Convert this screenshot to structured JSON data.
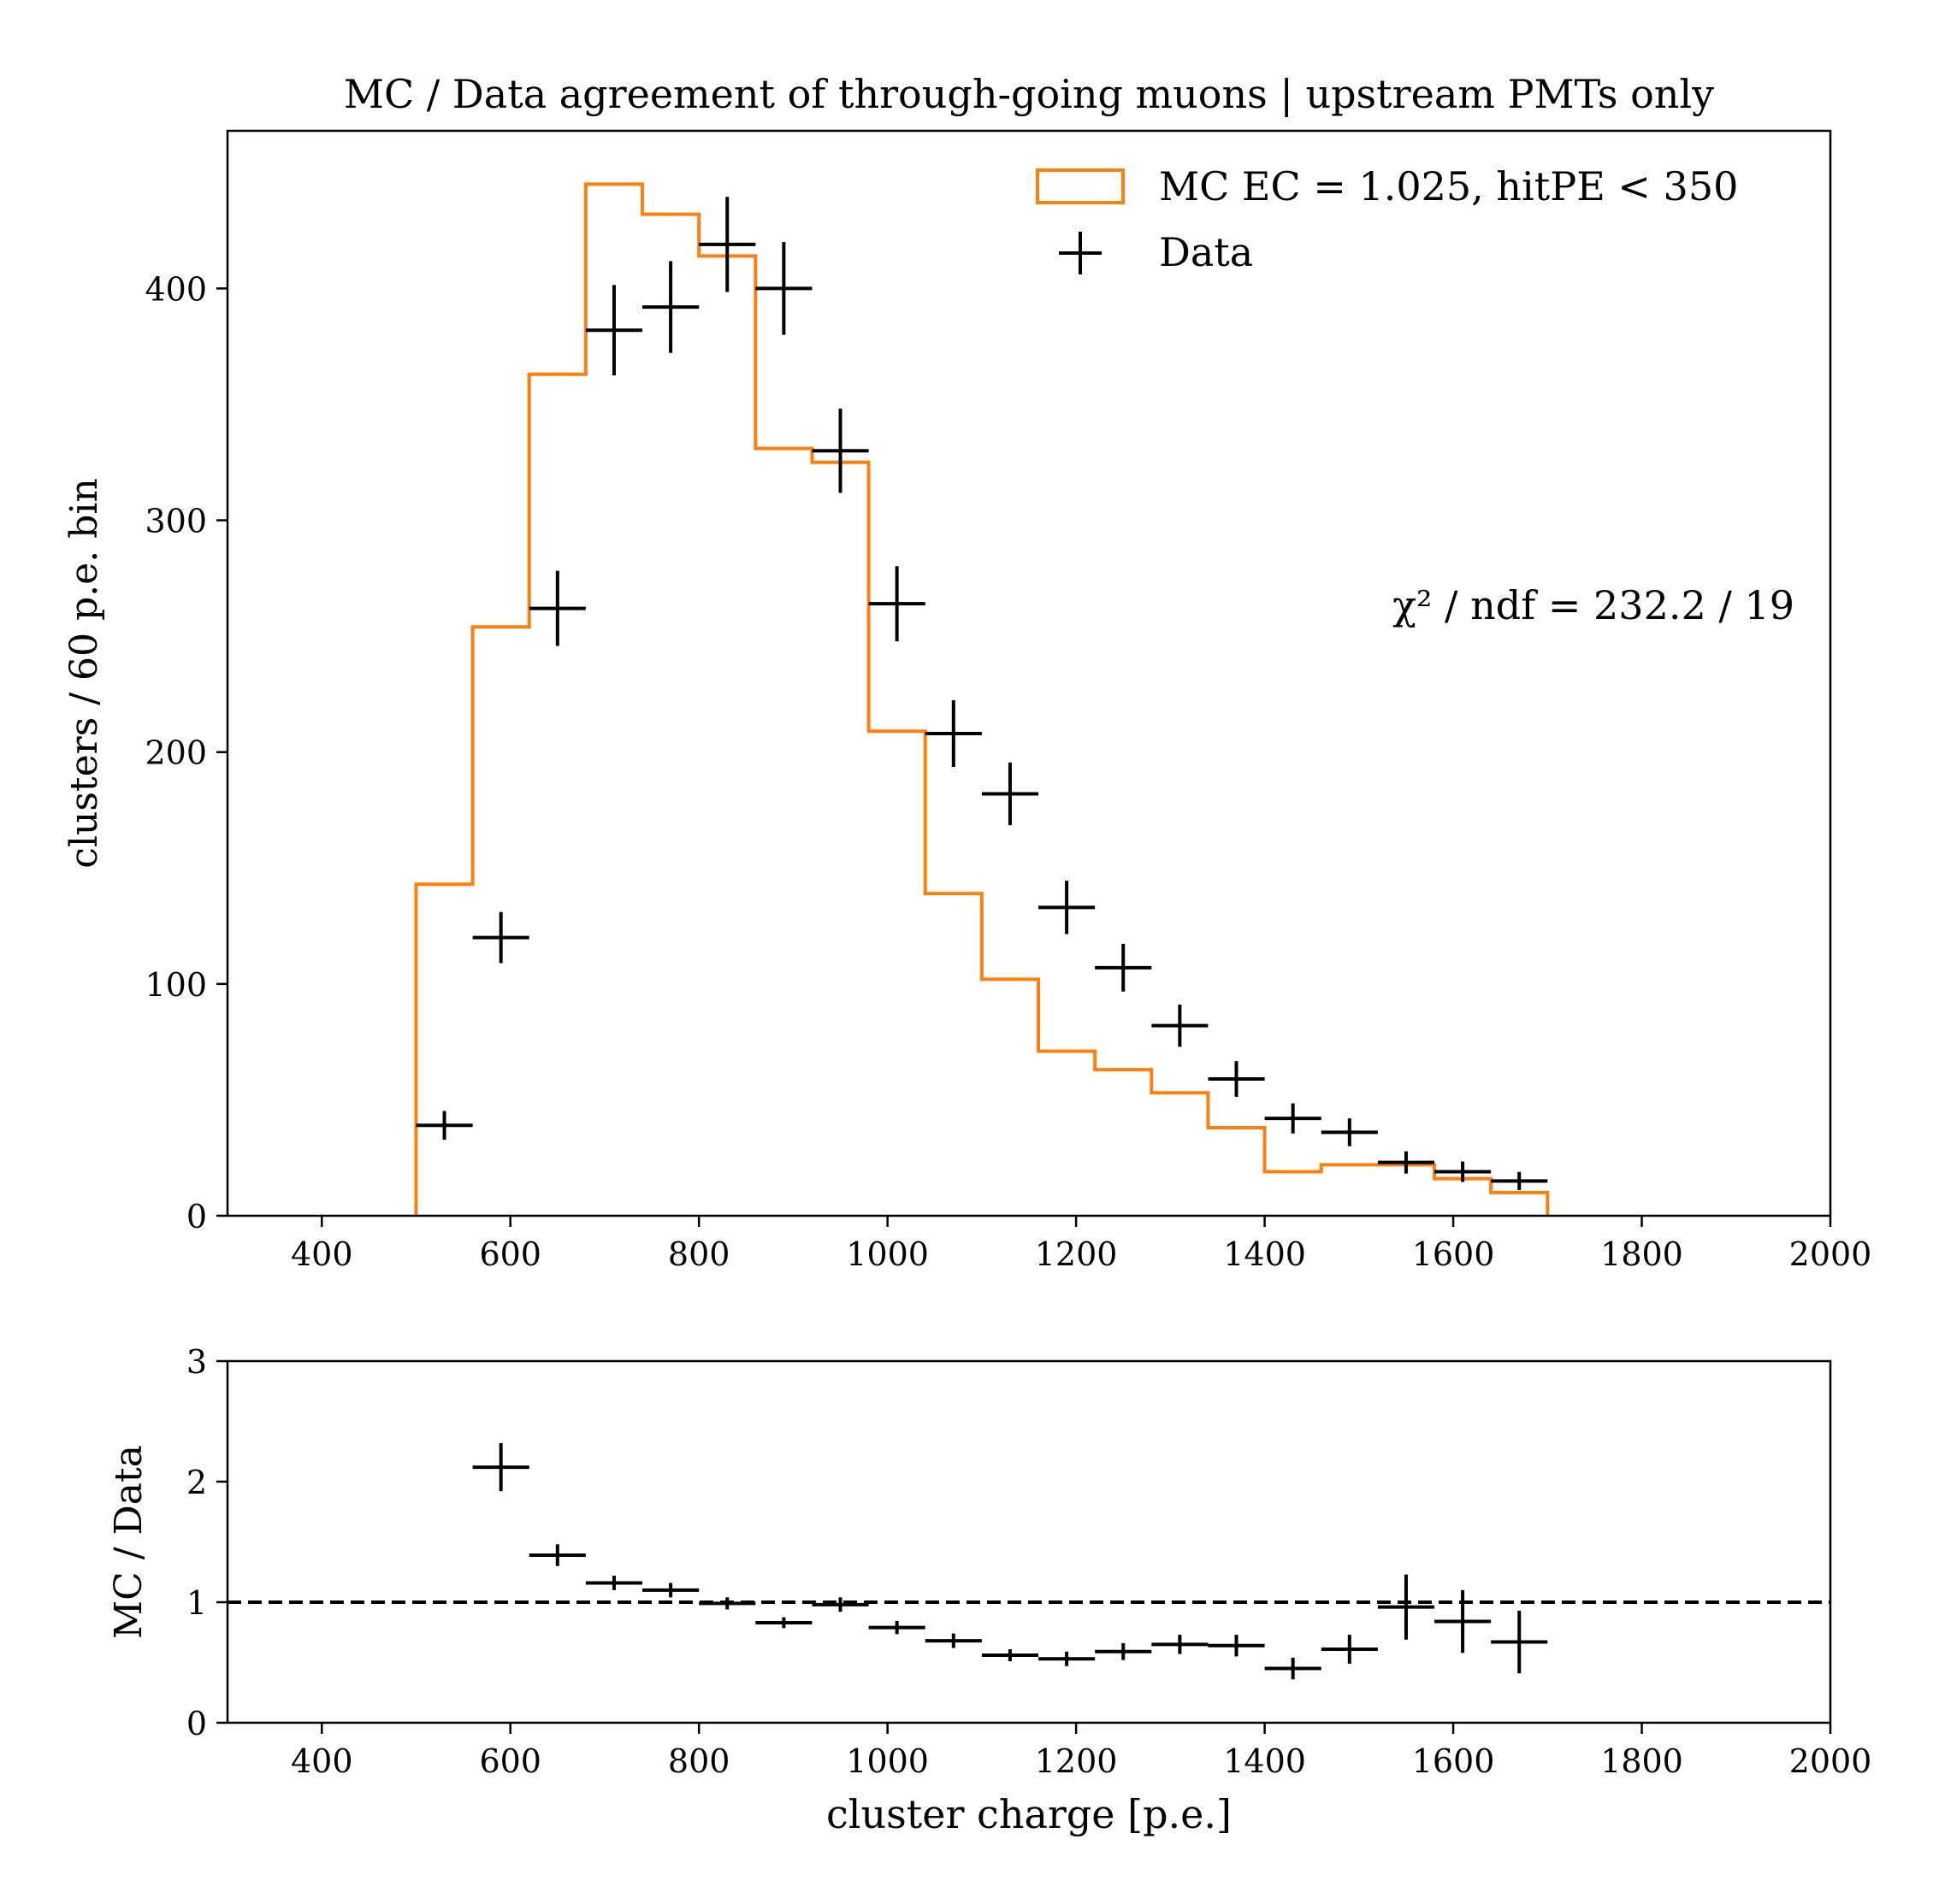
{
  "chart_data": [
    {
      "type": "histogram-errorbar",
      "title": "MC / Data agreement of through-going muons | upstream PMTs only",
      "xlabel": "",
      "ylabel": "clusters / 60 p.e. bin",
      "xlim": [
        300,
        2000
      ],
      "ylim": [
        0,
        468
      ],
      "xticks": [
        400,
        600,
        800,
        1000,
        1200,
        1400,
        1600,
        1800,
        2000
      ],
      "yticks": [
        0,
        100,
        200,
        300,
        400
      ],
      "annotation": "χ² / ndf = 232.2 / 19",
      "legend_position": "upper-right",
      "series": [
        {
          "name": "MC EC = 1.025, hitPE < 350",
          "kind": "step",
          "color": "#ff7f0e",
          "bin_edges": [
            500,
            560,
            620,
            680,
            740,
            800,
            860,
            920,
            980,
            1040,
            1100,
            1160,
            1220,
            1280,
            1340,
            1400,
            1460,
            1520,
            1580,
            1640,
            1700
          ],
          "values": [
            143,
            254,
            363,
            445,
            432,
            414,
            331,
            325,
            209,
            139,
            102,
            71,
            63,
            53,
            38,
            19,
            22,
            22,
            16,
            10
          ]
        },
        {
          "name": "Data",
          "kind": "errorbar",
          "color": "#000000",
          "x": [
            530,
            590,
            650,
            710,
            770,
            830,
            890,
            950,
            1010,
            1070,
            1130,
            1190,
            1250,
            1310,
            1370,
            1430,
            1490,
            1550,
            1610,
            1670
          ],
          "xerr": 30,
          "y": [
            39,
            120,
            262,
            382,
            392,
            419,
            400,
            330,
            264,
            208,
            182,
            133,
            107,
            82,
            59,
            42,
            36,
            23,
            19,
            15
          ],
          "yerr": [
            6.2,
            11,
            16.2,
            19.5,
            19.8,
            20.5,
            20,
            18.2,
            16.2,
            14.4,
            13.5,
            11.5,
            10.3,
            9.1,
            7.7,
            6.5,
            6,
            4.8,
            4.4,
            3.9
          ]
        }
      ]
    },
    {
      "type": "errorbar",
      "title": "",
      "xlabel": "cluster charge [p.e.]",
      "ylabel": "MC / Data",
      "xlim": [
        300,
        2000
      ],
      "ylim": [
        0,
        3
      ],
      "xticks": [
        400,
        600,
        800,
        1000,
        1200,
        1400,
        1600,
        1800,
        2000
      ],
      "yticks": [
        0,
        1,
        2,
        3
      ],
      "reference_line": {
        "y": 1,
        "style": "dashed",
        "color": "#000000"
      },
      "series": [
        {
          "name": "",
          "kind": "errorbar",
          "color": "#000000",
          "x": [
            590,
            650,
            710,
            770,
            830,
            890,
            950,
            1010,
            1070,
            1130,
            1190,
            1250,
            1310,
            1370,
            1430,
            1490,
            1550,
            1610,
            1670
          ],
          "xerr": 30,
          "y": [
            2.12,
            1.39,
            1.16,
            1.1,
            0.99,
            0.83,
            0.98,
            0.79,
            0.68,
            0.56,
            0.53,
            0.59,
            0.65,
            0.64,
            0.45,
            0.61,
            0.96,
            0.84,
            0.67
          ],
          "yerr": [
            0.2,
            0.09,
            0.06,
            0.06,
            0.05,
            0.045,
            0.06,
            0.055,
            0.06,
            0.05,
            0.06,
            0.07,
            0.08,
            0.09,
            0.09,
            0.12,
            0.27,
            0.26,
            0.26
          ]
        }
      ]
    }
  ]
}
